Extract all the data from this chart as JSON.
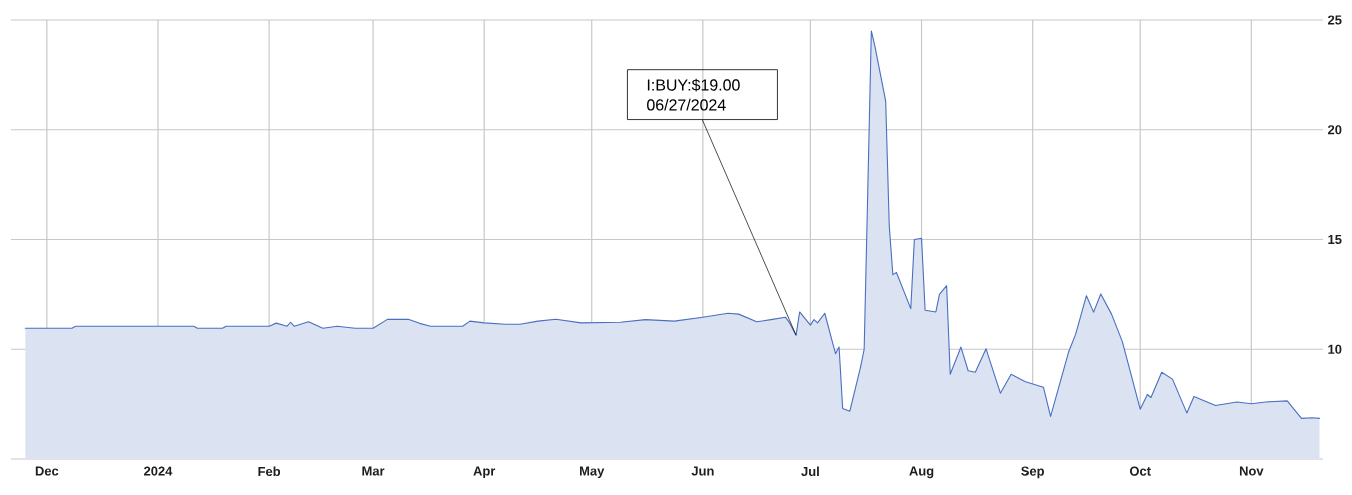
{
  "chart_data": {
    "type": "area",
    "color": "#4a6fc0",
    "x": [
      "2023-11-25",
      "2023-12-08",
      "2023-12-09",
      "2024-01-11",
      "2024-01-12",
      "2024-01-19",
      "2024-01-20",
      "2024-02-01",
      "2024-02-03",
      "2024-02-06",
      "2024-02-07",
      "2024-02-08",
      "2024-02-12",
      "2024-02-16",
      "2024-02-20",
      "2024-02-25",
      "2024-03-01",
      "2024-03-05",
      "2024-03-11",
      "2024-03-14",
      "2024-03-17",
      "2024-03-26",
      "2024-03-28",
      "2024-04-01",
      "2024-04-07",
      "2024-04-11",
      "2024-04-16",
      "2024-04-21",
      "2024-04-28",
      "2024-05-09",
      "2024-05-16",
      "2024-05-24",
      "2024-06-01",
      "2024-06-08",
      "2024-06-11",
      "2024-06-16",
      "2024-06-20",
      "2024-06-24",
      "2024-06-25",
      "2024-06-27",
      "2024-06-28",
      "2024-07-01",
      "2024-07-02",
      "2024-07-03",
      "2024-07-05",
      "2024-07-08",
      "2024-07-09",
      "2024-07-10",
      "2024-07-12",
      "2024-07-15",
      "2024-07-16",
      "2024-07-17",
      "2024-07-18",
      "2024-07-19",
      "2024-07-22",
      "2024-07-23",
      "2024-07-24",
      "2024-07-25",
      "2024-07-29",
      "2024-07-30",
      "2024-08-01",
      "2024-08-02",
      "2024-08-05",
      "2024-08-06",
      "2024-08-08",
      "2024-08-09",
      "2024-08-12",
      "2024-08-14",
      "2024-08-16",
      "2024-08-19",
      "2024-08-23",
      "2024-08-26",
      "2024-08-30",
      "2024-09-04",
      "2024-09-06",
      "2024-09-11",
      "2024-09-13",
      "2024-09-16",
      "2024-09-18",
      "2024-09-20",
      "2024-09-23",
      "2024-09-26",
      "2024-10-01",
      "2024-10-03",
      "2024-10-04",
      "2024-10-07",
      "2024-10-10",
      "2024-10-14",
      "2024-10-16",
      "2024-10-22",
      "2024-10-28",
      "2024-11-01",
      "2024-11-05",
      "2024-11-11",
      "2024-11-15",
      "2024-11-18",
      "2024-11-20"
    ],
    "values": [
      10.96,
      10.96,
      11.05,
      11.05,
      10.96,
      10.96,
      11.05,
      11.05,
      11.19,
      11.05,
      11.23,
      11.05,
      11.25,
      10.96,
      11.05,
      10.96,
      10.96,
      11.36,
      11.36,
      11.18,
      11.05,
      11.05,
      11.28,
      11.2,
      11.14,
      11.14,
      11.28,
      11.37,
      11.2,
      11.23,
      11.35,
      11.28,
      11.46,
      11.64,
      11.6,
      11.25,
      11.35,
      11.46,
      11.25,
      10.64,
      11.7,
      11.1,
      11.35,
      11.2,
      11.64,
      9.8,
      10.1,
      7.3,
      7.18,
      9.2,
      10.0,
      17.2,
      24.5,
      23.8,
      21.3,
      15.6,
      13.4,
      13.5,
      11.85,
      15.0,
      15.05,
      11.78,
      11.7,
      12.5,
      12.9,
      8.86,
      10.1,
      9.02,
      8.95,
      10.02,
      8.0,
      8.86,
      8.52,
      8.27,
      6.94,
      9.86,
      10.69,
      12.44,
      11.69,
      12.52,
      11.6,
      10.36,
      7.27,
      7.94,
      7.8,
      8.95,
      8.64,
      7.1,
      7.85,
      7.44,
      7.6,
      7.52,
      7.6,
      7.65,
      6.85,
      6.88,
      6.85
    ],
    "xlim": [
      "2023-11-21",
      "2024-11-21"
    ],
    "xticks": [
      {
        "value": "2023-12-01",
        "label": "Dec"
      },
      {
        "value": "2024-01-01",
        "label": "2024"
      },
      {
        "value": "2024-02-01",
        "label": "Feb"
      },
      {
        "value": "2024-03-01",
        "label": "Mar"
      },
      {
        "value": "2024-04-01",
        "label": "Apr"
      },
      {
        "value": "2024-05-01",
        "label": "May"
      },
      {
        "value": "2024-06-01",
        "label": "Jun"
      },
      {
        "value": "2024-07-01",
        "label": "Jul"
      },
      {
        "value": "2024-08-01",
        "label": "Aug"
      },
      {
        "value": "2024-09-01",
        "label": "Sep"
      },
      {
        "value": "2024-10-01",
        "label": "Oct"
      },
      {
        "value": "2024-11-01",
        "label": "Nov"
      }
    ],
    "ylim": [
      5,
      25
    ],
    "yticks": [
      10,
      15,
      20,
      25
    ],
    "grid": true,
    "annotations": [
      {
        "text": "I:BUY:$19.00 06/27/2024",
        "x": "2024-06-27",
        "y": 10.64
      }
    ]
  }
}
